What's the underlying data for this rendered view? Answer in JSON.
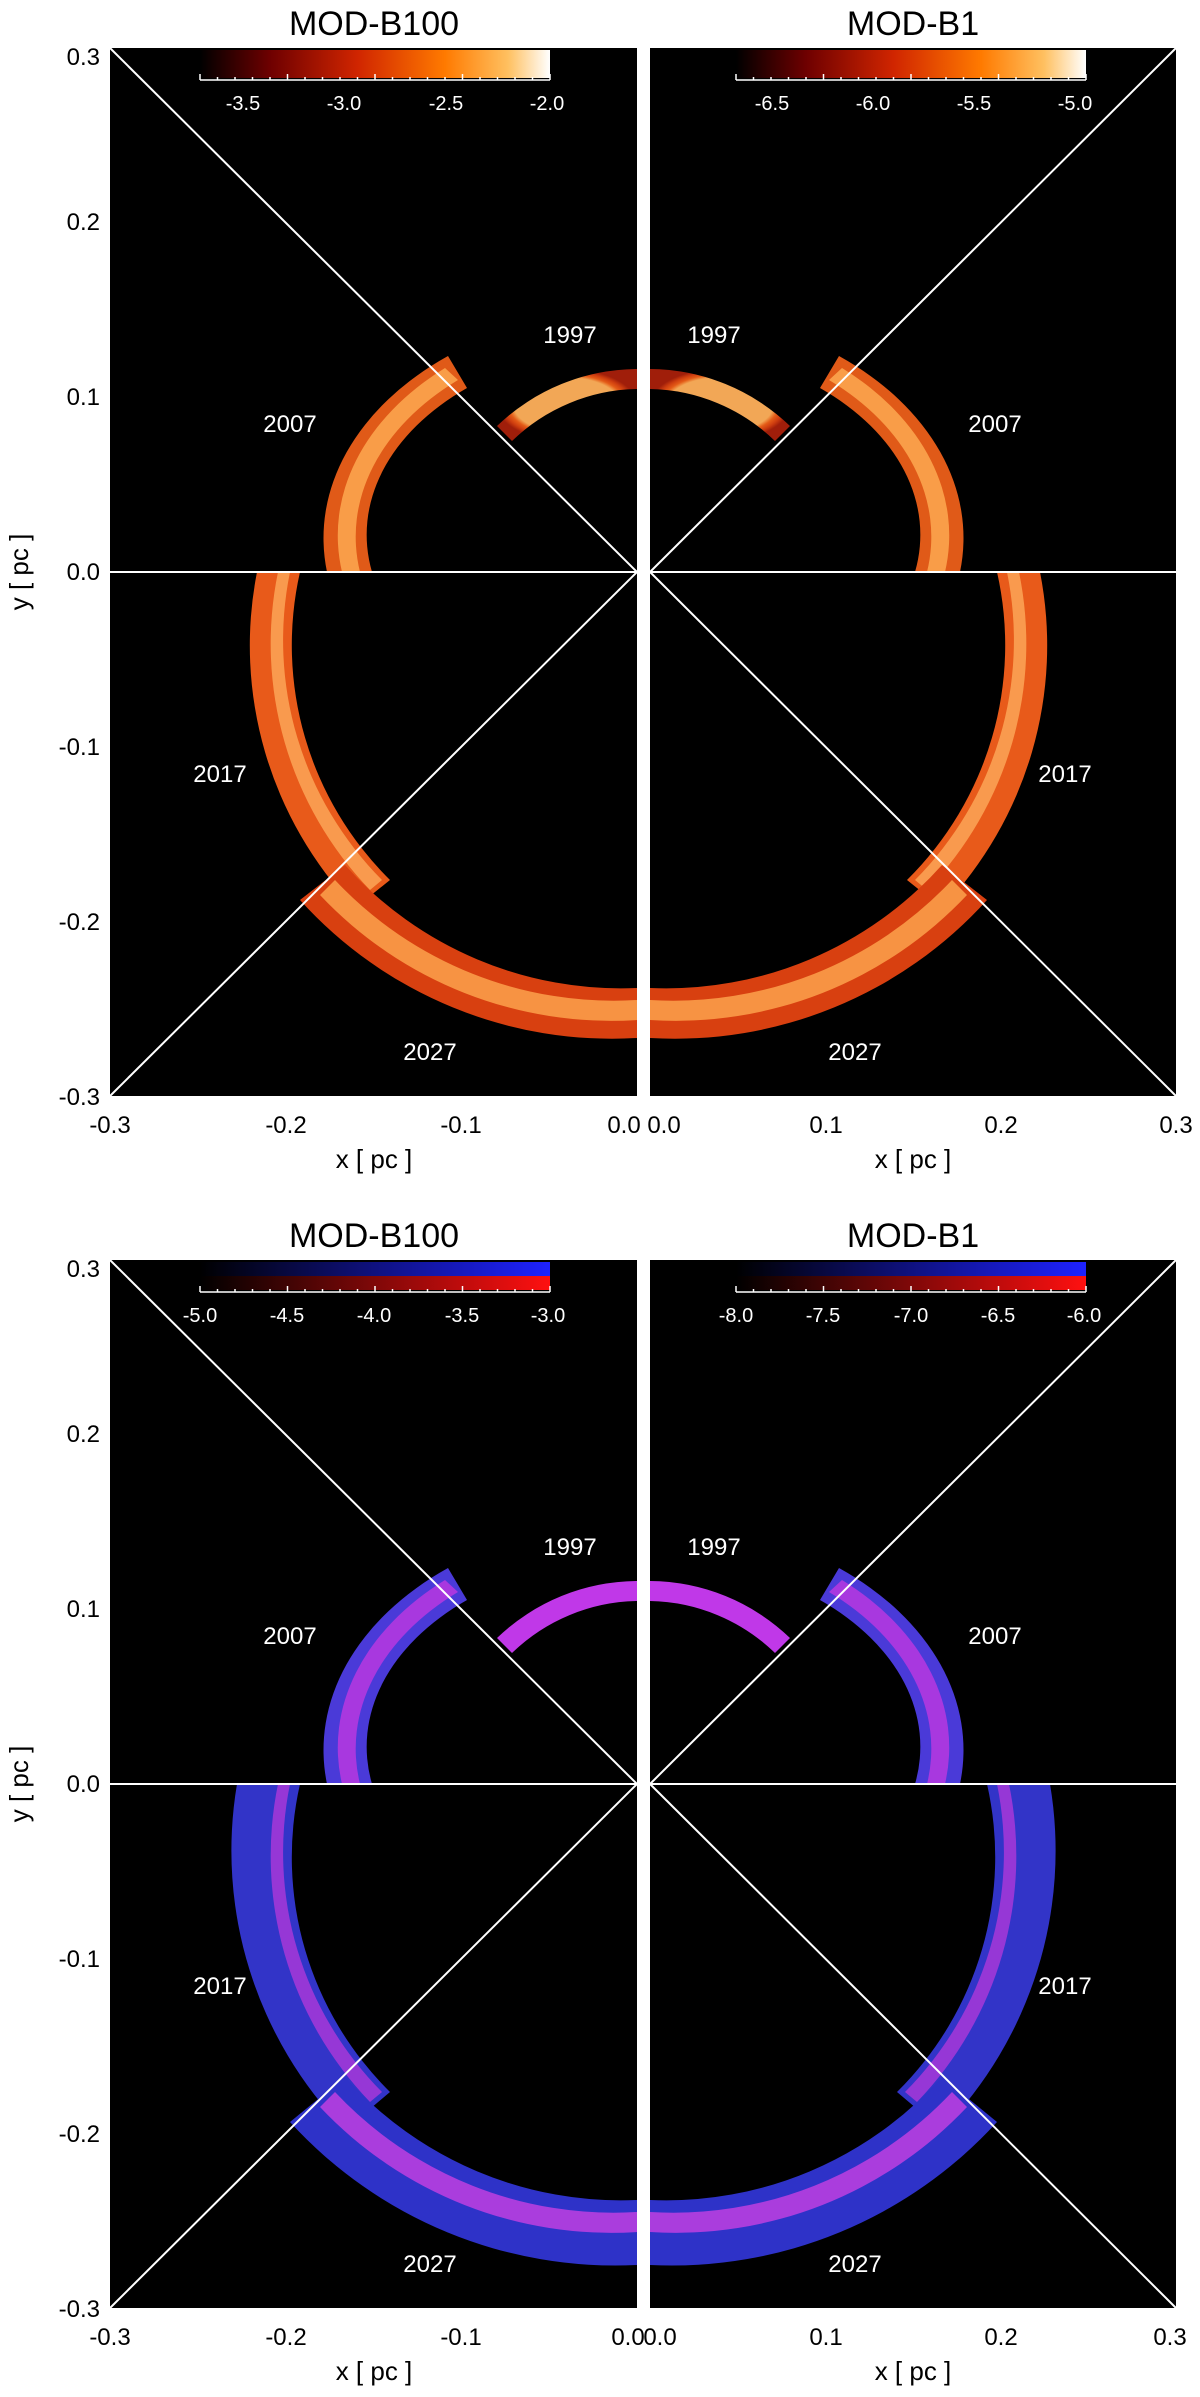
{
  "figure": {
    "panels": [
      {
        "id": "top",
        "xlabel": "x [ pc ]",
        "ylabel": "y [ pc ]",
        "x_ticks": [
          "-0.3",
          "-0.2",
          "-0.1",
          "0.0",
          "0.0",
          "0.1",
          "0.2",
          "0.3"
        ],
        "y_ticks": [
          "0.3",
          "0.2",
          "0.1",
          "0.0",
          "-0.1",
          "-0.2",
          "-0.3"
        ],
        "halves": [
          {
            "side": "left",
            "title": "MOD-B100",
            "colorbar": {
              "colormap": "hot",
              "ticks": [
                "-3.5",
                "-3.0",
                "-2.5",
                "-2.0"
              ]
            },
            "sector_labels": [
              "1997",
              "2007",
              "2017",
              "2027"
            ]
          },
          {
            "side": "right",
            "title": "MOD-B1",
            "colorbar": {
              "colormap": "hot",
              "ticks": [
                "-6.5",
                "-6.0",
                "-5.5",
                "-5.0"
              ]
            },
            "sector_labels": [
              "1997",
              "2007",
              "2017",
              "2027"
            ]
          }
        ]
      },
      {
        "id": "bottom",
        "xlabel": "x [ pc ]",
        "ylabel": "y [ pc ]",
        "x_ticks": [
          "-0.3",
          "-0.2",
          "-0.1",
          "0.0",
          "0.0",
          "0.1",
          "0.2",
          "0.3"
        ],
        "y_ticks": [
          "0.3",
          "0.2",
          "0.1",
          "0.0",
          "-0.1",
          "-0.2",
          "-0.3"
        ],
        "halves": [
          {
            "side": "left",
            "title": "MOD-B100",
            "colorbar": {
              "colormap": "blue-red",
              "ticks": [
                "-5.0",
                "-4.5",
                "-4.0",
                "-3.5",
                "-3.0"
              ]
            },
            "sector_labels": [
              "1997",
              "2007",
              "2017",
              "2027"
            ]
          },
          {
            "side": "right",
            "title": "MOD-B1",
            "colorbar": {
              "colormap": "blue-red",
              "ticks": [
                "-8.0",
                "-7.5",
                "-7.0",
                "-6.5",
                "-6.0"
              ]
            },
            "sector_labels": [
              "1997",
              "2007",
              "2017",
              "2027"
            ]
          }
        ]
      }
    ],
    "colors": {
      "background": "#000000",
      "lines": "#ffffff",
      "hot_shell_outer": "#b82a0a",
      "hot_shell_inner": "#ff9a3a",
      "hot_colorbar": [
        "#000000",
        "#6e0000",
        "#d02500",
        "#ff7a00",
        "#ffc060",
        "#ffffff"
      ],
      "blue_shell_outer": "#2a2ad0",
      "blue_shell_inner": "#c030e0",
      "blue_colorbar_top": "#1e22ff",
      "blue_colorbar_bottom": "#ff1010"
    }
  }
}
